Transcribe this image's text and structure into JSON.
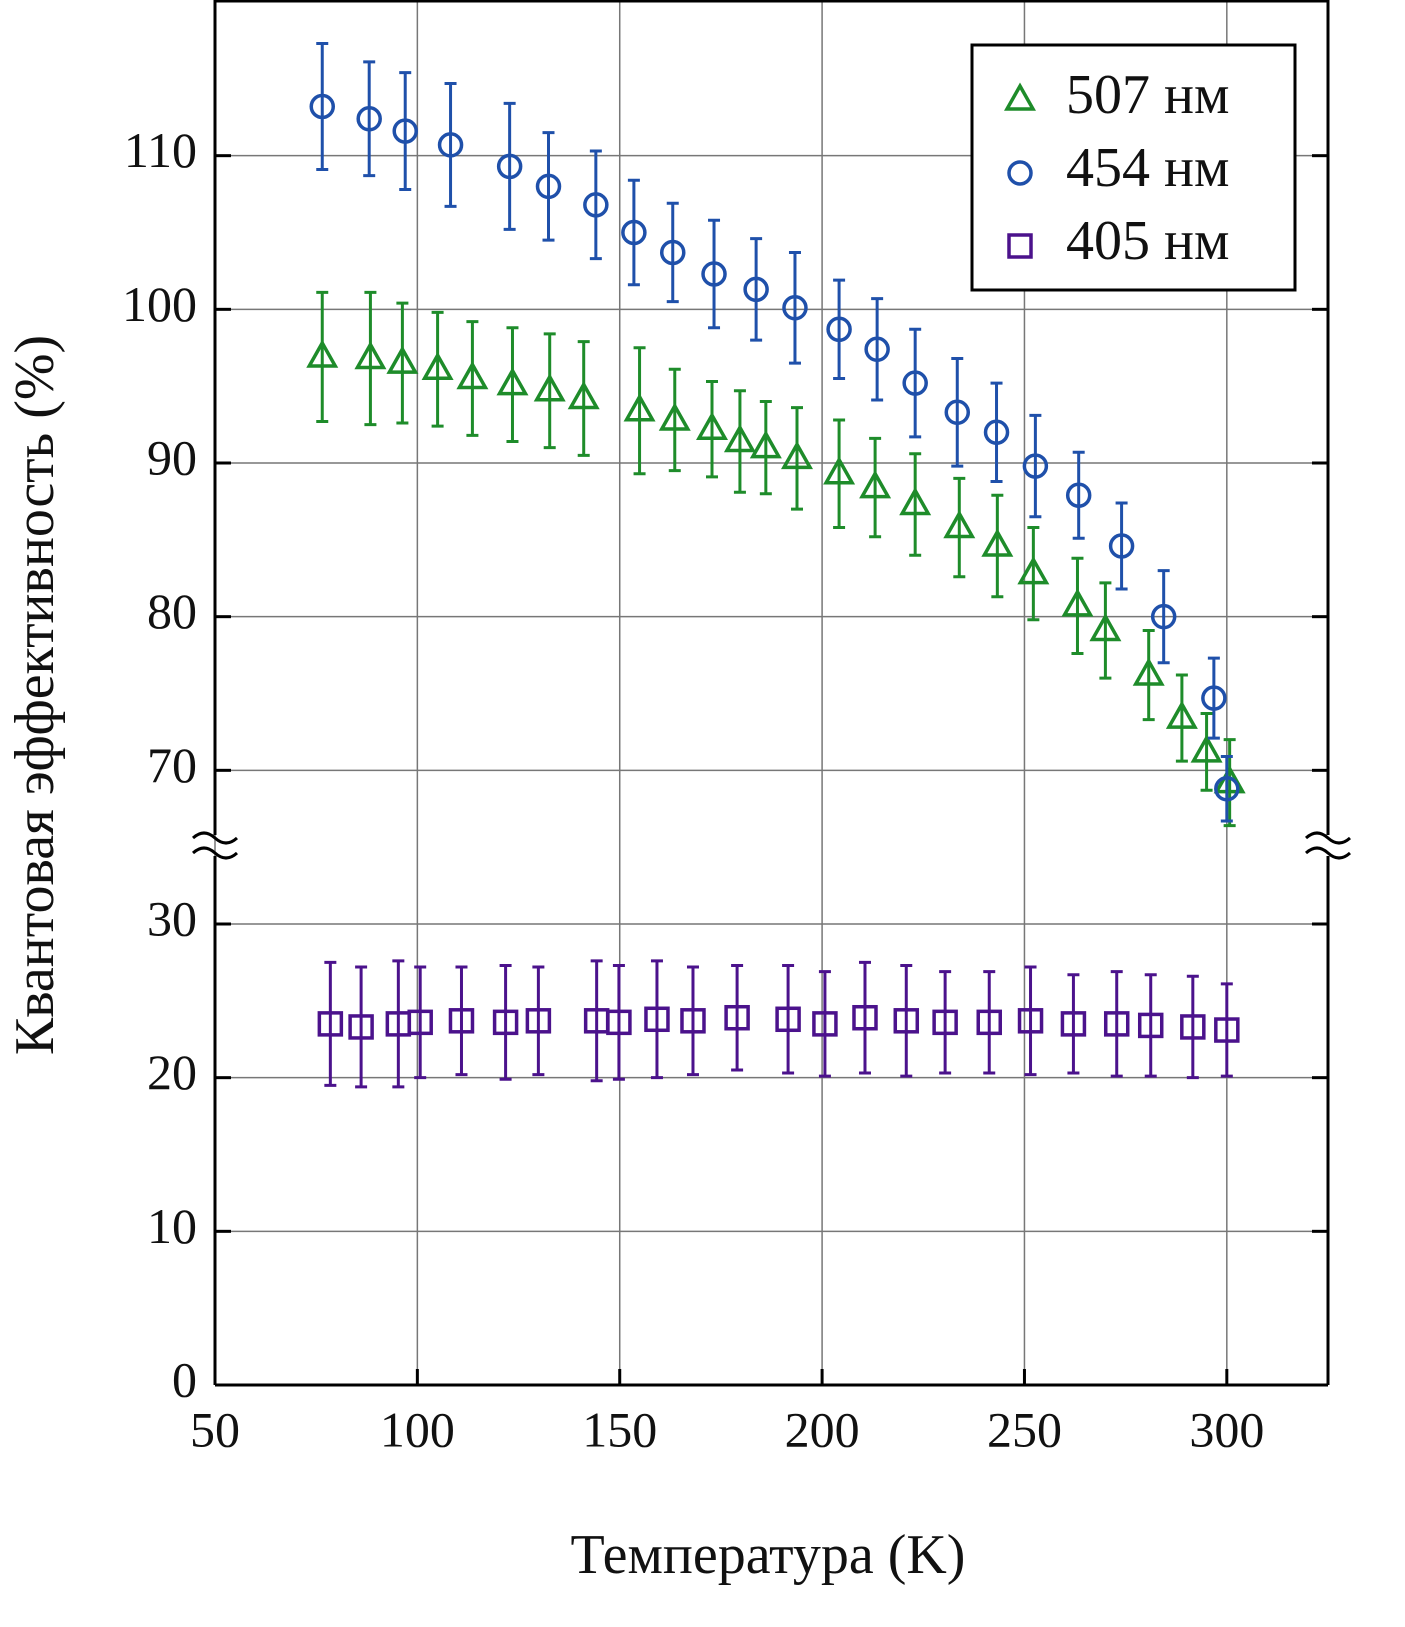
{
  "chart_data": {
    "type": "scatter",
    "xlabel": "Температура (K)",
    "ylabel": "Квантовая эффективность (%)",
    "xlim": [
      50,
      325
    ],
    "xticks": [
      50,
      100,
      150,
      200,
      250,
      300
    ],
    "ylim": [
      0,
      120
    ],
    "ybreak": [
      35,
      65
    ],
    "yticks": [
      0,
      10,
      20,
      30,
      70,
      80,
      90,
      100,
      110
    ],
    "grid": true,
    "legend": "upper right",
    "series": [
      {
        "name": "507 нм",
        "color": "#1e8c2a",
        "marker": "triangle",
        "x": [
          76.5,
          88.4,
          96.3,
          105.0,
          113.6,
          123.5,
          132.7,
          141.1,
          154.9,
          163.6,
          172.8,
          179.7,
          186.1,
          193.8,
          204.2,
          213.1,
          223.0,
          233.9,
          243.3,
          252.2,
          263.1,
          270.0,
          280.7,
          288.9,
          295.0,
          300.7
        ],
        "values": [
          96.9,
          96.8,
          96.5,
          96.1,
          95.5,
          95.1,
          94.7,
          94.2,
          93.4,
          92.8,
          92.2,
          91.4,
          91.0,
          90.3,
          89.3,
          88.4,
          87.3,
          85.8,
          84.6,
          82.8,
          80.7,
          79.1,
          76.2,
          73.4,
          71.2,
          69.2
        ],
        "errors": [
          4.2,
          4.3,
          3.9,
          3.7,
          3.7,
          3.7,
          3.7,
          3.7,
          4.1,
          3.3,
          3.1,
          3.3,
          3.0,
          3.3,
          3.5,
          3.2,
          3.3,
          3.2,
          3.3,
          3.0,
          3.1,
          3.1,
          2.9,
          2.8,
          2.5,
          2.8
        ]
      },
      {
        "name": "454 нм",
        "color": "#1f50aa",
        "marker": "circle",
        "x": [
          76.5,
          88.1,
          97.0,
          108.2,
          122.8,
          132.4,
          144.1,
          153.5,
          163.1,
          173.3,
          183.7,
          193.3,
          204.2,
          213.6,
          223.0,
          233.4,
          243.1,
          252.7,
          263.4,
          274.0,
          284.4,
          296.8,
          300.0
        ],
        "values": [
          113.2,
          112.4,
          111.6,
          110.7,
          109.3,
          108.0,
          106.8,
          105.0,
          103.7,
          102.3,
          101.3,
          100.1,
          98.7,
          97.4,
          95.2,
          93.3,
          92.0,
          89.8,
          87.9,
          84.6,
          80.0,
          74.7,
          68.8
        ],
        "errors": [
          4.1,
          3.7,
          3.8,
          4.0,
          4.1,
          3.5,
          3.5,
          3.4,
          3.2,
          3.5,
          3.3,
          3.6,
          3.2,
          3.3,
          3.5,
          3.5,
          3.2,
          3.3,
          2.8,
          2.8,
          3.0,
          2.6,
          2.1
        ]
      },
      {
        "name": "405 нм",
        "color": "#4b128c",
        "marker": "square",
        "x": [
          78.5,
          86.1,
          95.3,
          100.7,
          110.9,
          121.8,
          129.9,
          144.3,
          149.8,
          159.2,
          168.1,
          179.0,
          191.6,
          200.7,
          210.6,
          220.8,
          230.4,
          241.3,
          251.5,
          262.1,
          272.8,
          281.2,
          291.6,
          300.0
        ],
        "values": [
          23.5,
          23.3,
          23.5,
          23.6,
          23.7,
          23.6,
          23.7,
          23.7,
          23.6,
          23.8,
          23.7,
          23.9,
          23.8,
          23.5,
          23.9,
          23.7,
          23.6,
          23.6,
          23.7,
          23.5,
          23.5,
          23.4,
          23.3,
          23.1
        ],
        "errors": [
          4.0,
          3.9,
          4.1,
          3.6,
          3.5,
          3.7,
          3.5,
          3.9,
          3.7,
          3.8,
          3.5,
          3.4,
          3.5,
          3.4,
          3.6,
          3.6,
          3.3,
          3.3,
          3.5,
          3.2,
          3.4,
          3.3,
          3.3,
          3.0
        ]
      }
    ]
  }
}
